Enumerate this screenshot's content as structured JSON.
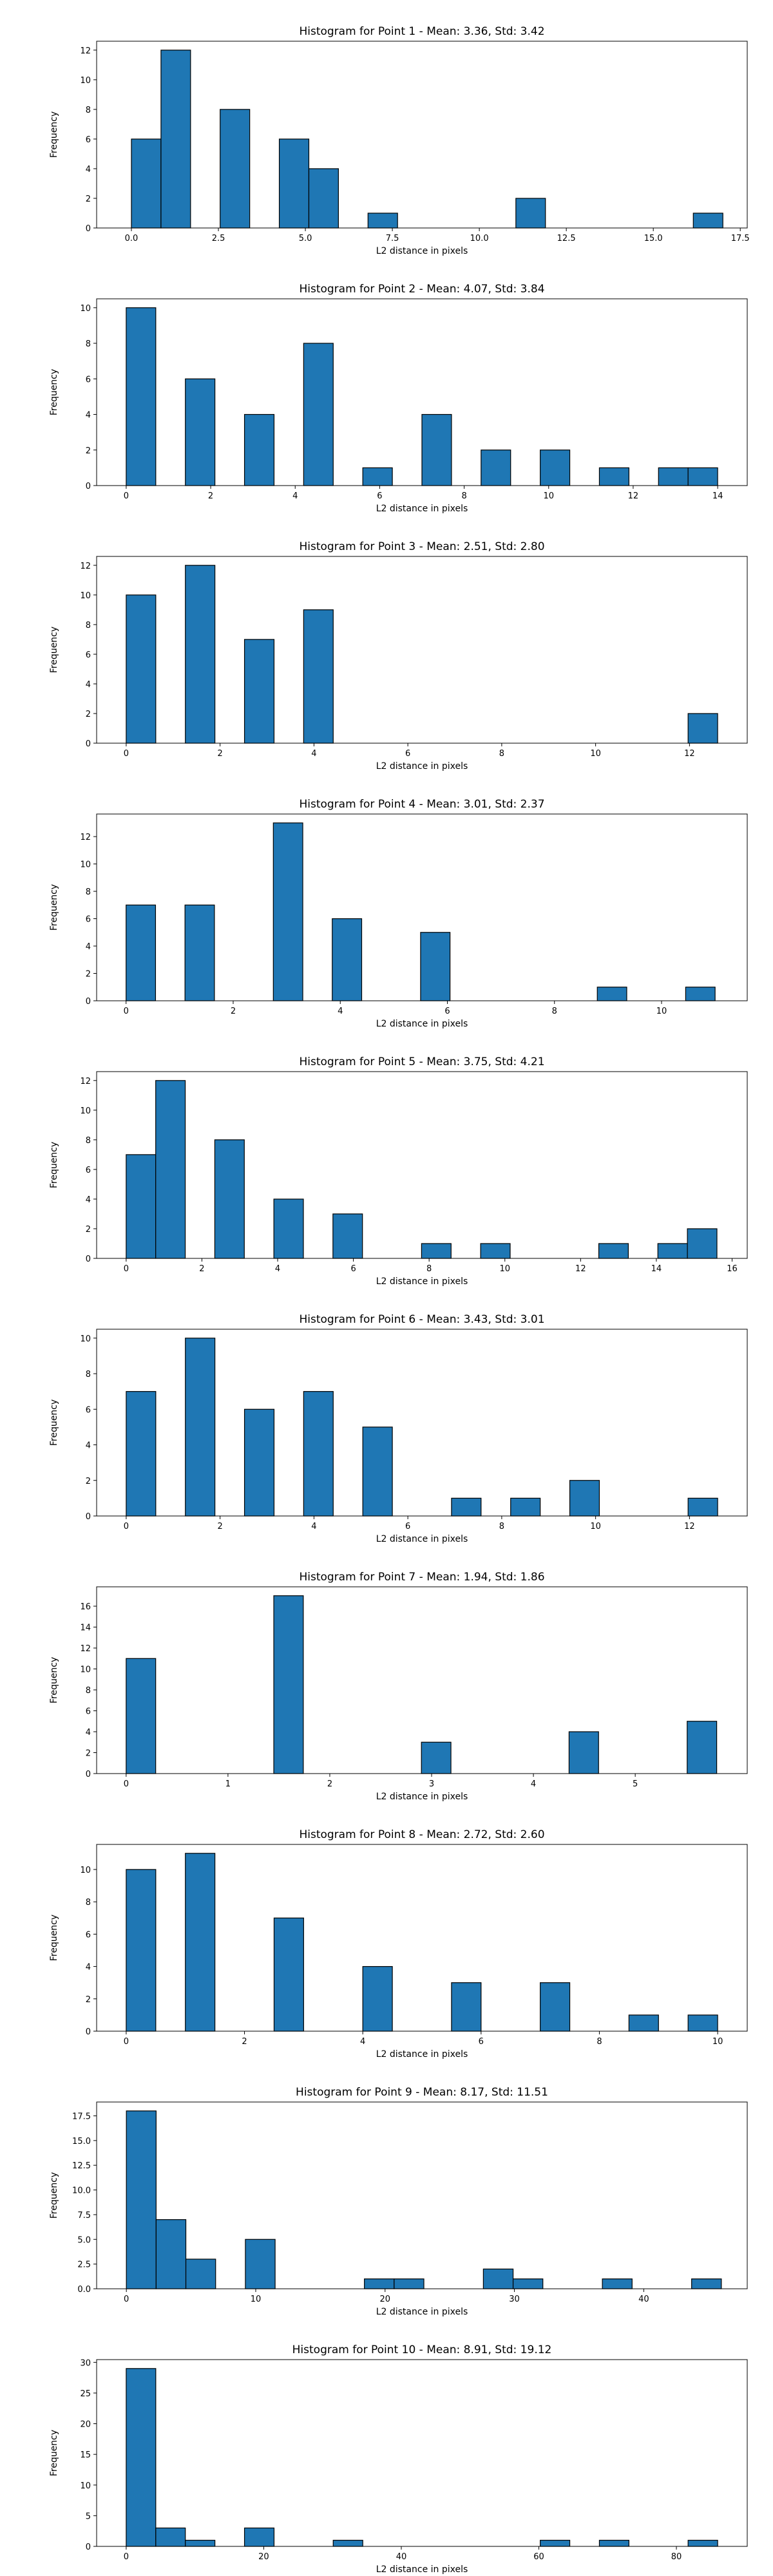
{
  "chart_data": [
    {
      "type": "bar",
      "title": "Histogram for Point 1 - Mean: 3.36, Std: 3.42",
      "xlabel": "L2 distance in pixels",
      "ylabel": "Frequency",
      "xlim": [
        -1.0,
        17.7
      ],
      "ylim": [
        0,
        12.6
      ],
      "xticks": [
        0.0,
        2.5,
        5.0,
        7.5,
        10.0,
        12.5,
        15.0,
        17.5
      ],
      "xtick_labels": [
        "0.0",
        "2.5",
        "5.0",
        "7.5",
        "10.0",
        "12.5",
        "15.0",
        "17.5"
      ],
      "yticks": [
        0,
        2,
        4,
        6,
        8,
        10,
        12
      ],
      "ytick_labels": [
        "0",
        "2",
        "4",
        "6",
        "8",
        "10",
        "12"
      ],
      "bins": [
        {
          "x0": 0.0,
          "x1": 0.85,
          "count": 6
        },
        {
          "x0": 0.85,
          "x1": 1.7,
          "count": 12
        },
        {
          "x0": 2.55,
          "x1": 3.4,
          "count": 8
        },
        {
          "x0": 4.25,
          "x1": 5.1,
          "count": 6
        },
        {
          "x0": 5.1,
          "x1": 5.95,
          "count": 4
        },
        {
          "x0": 6.8,
          "x1": 7.65,
          "count": 1
        },
        {
          "x0": 11.05,
          "x1": 11.9,
          "count": 2
        },
        {
          "x0": 16.15,
          "x1": 17.0,
          "count": 1
        }
      ]
    },
    {
      "type": "bar",
      "title": "Histogram for Point 2 - Mean: 4.07, Std: 3.84",
      "xlabel": "L2 distance in pixels",
      "ylabel": "Frequency",
      "xlim": [
        -0.7,
        14.7
      ],
      "ylim": [
        0,
        10.5
      ],
      "xticks": [
        0,
        2,
        4,
        6,
        8,
        10,
        12,
        14
      ],
      "xtick_labels": [
        "0",
        "2",
        "4",
        "6",
        "8",
        "10",
        "12",
        "14"
      ],
      "yticks": [
        0,
        2,
        4,
        6,
        8,
        10
      ],
      "ytick_labels": [
        "0",
        "2",
        "4",
        "6",
        "8",
        "10"
      ],
      "bins": [
        {
          "x0": 0.0,
          "x1": 0.7,
          "count": 10
        },
        {
          "x0": 1.4,
          "x1": 2.1,
          "count": 6
        },
        {
          "x0": 2.8,
          "x1": 3.5,
          "count": 4
        },
        {
          "x0": 4.2,
          "x1": 4.9,
          "count": 8
        },
        {
          "x0": 5.6,
          "x1": 6.3,
          "count": 1
        },
        {
          "x0": 7.0,
          "x1": 7.7,
          "count": 4
        },
        {
          "x0": 8.4,
          "x1": 9.1,
          "count": 2
        },
        {
          "x0": 9.8,
          "x1": 10.5,
          "count": 2
        },
        {
          "x0": 11.2,
          "x1": 11.9,
          "count": 1
        },
        {
          "x0": 12.6,
          "x1": 13.3,
          "count": 1
        },
        {
          "x0": 13.3,
          "x1": 14.0,
          "count": 1
        }
      ]
    },
    {
      "type": "bar",
      "title": "Histogram for Point 3 - Mean: 2.51, Std: 2.80",
      "xlabel": "L2 distance in pixels",
      "ylabel": "Frequency",
      "xlim": [
        -0.63,
        13.23
      ],
      "ylim": [
        0,
        12.6
      ],
      "xticks": [
        0,
        2,
        4,
        6,
        8,
        10,
        12
      ],
      "xtick_labels": [
        "0",
        "2",
        "4",
        "6",
        "8",
        "10",
        "12"
      ],
      "yticks": [
        0,
        2,
        4,
        6,
        8,
        10,
        12
      ],
      "ytick_labels": [
        "0",
        "2",
        "4",
        "6",
        "8",
        "10",
        "12"
      ],
      "bins": [
        {
          "x0": 0.0,
          "x1": 0.63,
          "count": 10
        },
        {
          "x0": 1.26,
          "x1": 1.89,
          "count": 12
        },
        {
          "x0": 2.52,
          "x1": 3.15,
          "count": 7
        },
        {
          "x0": 3.78,
          "x1": 4.41,
          "count": 9
        },
        {
          "x0": 11.97,
          "x1": 12.6,
          "count": 2
        }
      ]
    },
    {
      "type": "bar",
      "title": "Histogram for Point 4 - Mean: 3.01, Std: 2.37",
      "xlabel": "L2 distance in pixels",
      "ylabel": "Frequency",
      "xlim": [
        -0.55,
        11.6
      ],
      "ylim": [
        0,
        13.65
      ],
      "xticks": [
        0,
        2,
        4,
        6,
        8,
        10
      ],
      "xtick_labels": [
        "0",
        "2",
        "4",
        "6",
        "8",
        "10"
      ],
      "yticks": [
        0,
        2,
        4,
        6,
        8,
        10,
        12
      ],
      "ytick_labels": [
        "0",
        "2",
        "4",
        "6",
        "8",
        "10",
        "12"
      ],
      "bins": [
        {
          "x0": 0.0,
          "x1": 0.55,
          "count": 7
        },
        {
          "x0": 1.1,
          "x1": 1.65,
          "count": 7
        },
        {
          "x0": 2.75,
          "x1": 3.3,
          "count": 13
        },
        {
          "x0": 3.85,
          "x1": 4.4,
          "count": 6
        },
        {
          "x0": 5.5,
          "x1": 6.05,
          "count": 5
        },
        {
          "x0": 8.8,
          "x1": 9.35,
          "count": 1
        },
        {
          "x0": 10.45,
          "x1": 11.0,
          "count": 1
        }
      ]
    },
    {
      "type": "bar",
      "title": "Histogram for Point 5 - Mean: 3.75, Std: 4.21",
      "xlabel": "L2 distance in pixels",
      "ylabel": "Frequency",
      "xlim": [
        -0.78,
        16.4
      ],
      "ylim": [
        0,
        12.6
      ],
      "xticks": [
        0,
        2,
        4,
        6,
        8,
        10,
        12,
        14,
        16
      ],
      "xtick_labels": [
        "0",
        "2",
        "4",
        "6",
        "8",
        "10",
        "12",
        "14",
        "16"
      ],
      "yticks": [
        0,
        2,
        4,
        6,
        8,
        10,
        12
      ],
      "ytick_labels": [
        "0",
        "2",
        "4",
        "6",
        "8",
        "10",
        "12"
      ],
      "bins": [
        {
          "x0": 0.0,
          "x1": 0.78,
          "count": 7
        },
        {
          "x0": 0.78,
          "x1": 1.56,
          "count": 12
        },
        {
          "x0": 2.34,
          "x1": 3.12,
          "count": 8
        },
        {
          "x0": 3.9,
          "x1": 4.68,
          "count": 4
        },
        {
          "x0": 5.46,
          "x1": 6.24,
          "count": 3
        },
        {
          "x0": 7.8,
          "x1": 8.58,
          "count": 1
        },
        {
          "x0": 9.36,
          "x1": 10.14,
          "count": 1
        },
        {
          "x0": 12.48,
          "x1": 13.26,
          "count": 1
        },
        {
          "x0": 14.04,
          "x1": 14.82,
          "count": 1
        },
        {
          "x0": 14.82,
          "x1": 15.6,
          "count": 2
        }
      ]
    },
    {
      "type": "bar",
      "title": "Histogram for Point 6 - Mean: 3.43, Std: 3.01",
      "xlabel": "L2 distance in pixels",
      "ylabel": "Frequency",
      "xlim": [
        -0.63,
        13.23
      ],
      "ylim": [
        0,
        10.5
      ],
      "xticks": [
        0,
        2,
        4,
        6,
        8,
        10,
        12
      ],
      "xtick_labels": [
        "0",
        "2",
        "4",
        "6",
        "8",
        "10",
        "12"
      ],
      "yticks": [
        0,
        2,
        4,
        6,
        8,
        10
      ],
      "ytick_labels": [
        "0",
        "2",
        "4",
        "6",
        "8",
        "10"
      ],
      "bins": [
        {
          "x0": 0.0,
          "x1": 0.63,
          "count": 7
        },
        {
          "x0": 1.26,
          "x1": 1.89,
          "count": 10
        },
        {
          "x0": 2.52,
          "x1": 3.15,
          "count": 6
        },
        {
          "x0": 3.78,
          "x1": 4.41,
          "count": 7
        },
        {
          "x0": 5.04,
          "x1": 5.67,
          "count": 5
        },
        {
          "x0": 6.93,
          "x1": 7.56,
          "count": 1
        },
        {
          "x0": 8.19,
          "x1": 8.82,
          "count": 1
        },
        {
          "x0": 9.45,
          "x1": 10.08,
          "count": 2
        },
        {
          "x0": 11.97,
          "x1": 12.6,
          "count": 1
        }
      ]
    },
    {
      "type": "bar",
      "title": "Histogram for Point 7 - Mean: 1.94, Std: 1.86",
      "xlabel": "L2 distance in pixels",
      "ylabel": "Frequency",
      "xlim": [
        -0.29,
        6.1
      ],
      "ylim": [
        0,
        17.85
      ],
      "xticks": [
        0,
        1,
        2,
        3,
        4,
        5
      ],
      "xtick_labels": [
        "0",
        "1",
        "2",
        "3",
        "4",
        "5"
      ],
      "yticks": [
        0,
        2,
        4,
        6,
        8,
        10,
        12,
        14,
        16
      ],
      "ytick_labels": [
        "0",
        "2",
        "4",
        "6",
        "8",
        "10",
        "12",
        "14",
        "16"
      ],
      "bins": [
        {
          "x0": 0.0,
          "x1": 0.29,
          "count": 11
        },
        {
          "x0": 1.45,
          "x1": 1.74,
          "count": 17
        },
        {
          "x0": 2.9,
          "x1": 3.19,
          "count": 3
        },
        {
          "x0": 4.35,
          "x1": 4.64,
          "count": 4
        },
        {
          "x0": 5.51,
          "x1": 5.8,
          "count": 5
        }
      ]
    },
    {
      "type": "bar",
      "title": "Histogram for Point 8 - Mean: 2.72, Std: 2.60",
      "xlabel": "L2 distance in pixels",
      "ylabel": "Frequency",
      "xlim": [
        -0.5,
        10.5
      ],
      "ylim": [
        0,
        11.55
      ],
      "xticks": [
        0,
        2,
        4,
        6,
        8,
        10
      ],
      "xtick_labels": [
        "0",
        "2",
        "4",
        "6",
        "8",
        "10"
      ],
      "yticks": [
        0,
        2,
        4,
        6,
        8,
        10
      ],
      "ytick_labels": [
        "0",
        "2",
        "4",
        "6",
        "8",
        "10"
      ],
      "bins": [
        {
          "x0": 0.0,
          "x1": 0.5,
          "count": 10
        },
        {
          "x0": 1.0,
          "x1": 1.5,
          "count": 11
        },
        {
          "x0": 2.5,
          "x1": 3.0,
          "count": 7
        },
        {
          "x0": 4.0,
          "x1": 4.5,
          "count": 4
        },
        {
          "x0": 5.5,
          "x1": 6.0,
          "count": 3
        },
        {
          "x0": 7.0,
          "x1": 7.5,
          "count": 3
        },
        {
          "x0": 8.5,
          "x1": 9.0,
          "count": 1
        },
        {
          "x0": 9.5,
          "x1": 10.0,
          "count": 1
        }
      ]
    },
    {
      "type": "bar",
      "title": "Histogram for Point 9 - Mean: 8.17, Std: 11.51",
      "xlabel": "L2 distance in pixels",
      "ylabel": "Frequency",
      "xlim": [
        -2.3,
        48.0
      ],
      "ylim": [
        0,
        18.9
      ],
      "xticks": [
        0,
        10,
        20,
        30,
        40
      ],
      "xtick_labels": [
        "0",
        "10",
        "20",
        "30",
        "40"
      ],
      "yticks": [
        0,
        2.5,
        5.0,
        7.5,
        10.0,
        12.5,
        15.0,
        17.5
      ],
      "ytick_labels": [
        "0.0",
        "2.5",
        "5.0",
        "7.5",
        "10.0",
        "12.5",
        "15.0",
        "17.5"
      ],
      "bins": [
        {
          "x0": 0.0,
          "x1": 2.3,
          "count": 18
        },
        {
          "x0": 2.3,
          "x1": 4.6,
          "count": 7
        },
        {
          "x0": 4.6,
          "x1": 6.9,
          "count": 3
        },
        {
          "x0": 9.2,
          "x1": 11.5,
          "count": 5
        },
        {
          "x0": 18.4,
          "x1": 20.7,
          "count": 1
        },
        {
          "x0": 20.7,
          "x1": 23.0,
          "count": 1
        },
        {
          "x0": 27.6,
          "x1": 29.9,
          "count": 2
        },
        {
          "x0": 29.9,
          "x1": 32.2,
          "count": 1
        },
        {
          "x0": 36.8,
          "x1": 39.1,
          "count": 1
        },
        {
          "x0": 43.7,
          "x1": 46.0,
          "count": 1
        }
      ]
    },
    {
      "type": "bar",
      "title": "Histogram for Point 10 - Mean: 8.91, Std: 19.12",
      "xlabel": "L2 distance in pixels",
      "ylabel": "Frequency",
      "xlim": [
        -4.3,
        90.3
      ],
      "ylim": [
        0,
        30.45
      ],
      "xticks": [
        0,
        20,
        40,
        60,
        80
      ],
      "xtick_labels": [
        "0",
        "20",
        "40",
        "60",
        "80"
      ],
      "yticks": [
        0,
        5,
        10,
        15,
        20,
        25,
        30
      ],
      "ytick_labels": [
        "0",
        "5",
        "10",
        "15",
        "20",
        "25",
        "30"
      ],
      "bins": [
        {
          "x0": 0.0,
          "x1": 4.3,
          "count": 29
        },
        {
          "x0": 4.3,
          "x1": 8.6,
          "count": 3
        },
        {
          "x0": 8.6,
          "x1": 12.9,
          "count": 1
        },
        {
          "x0": 17.2,
          "x1": 21.5,
          "count": 3
        },
        {
          "x0": 30.1,
          "x1": 34.4,
          "count": 1
        },
        {
          "x0": 60.2,
          "x1": 64.5,
          "count": 1
        },
        {
          "x0": 68.8,
          "x1": 73.1,
          "count": 1
        },
        {
          "x0": 81.7,
          "x1": 86.0,
          "count": 1
        }
      ]
    }
  ]
}
